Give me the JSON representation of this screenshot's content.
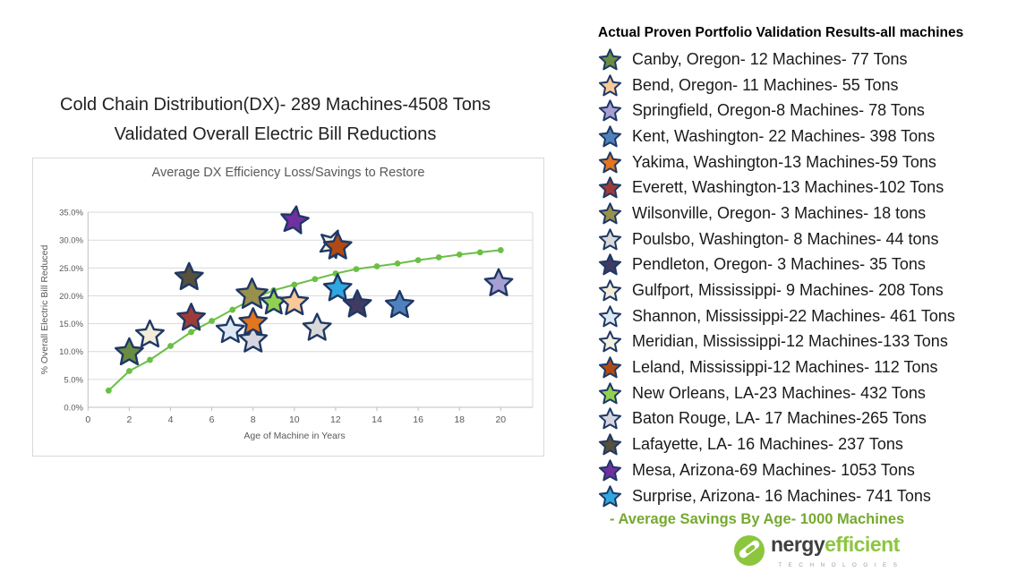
{
  "slide": {
    "title_line1": "Cold Chain Distribution(DX)- 289 Machines-4508 Tons",
    "title_line2": "Validated Overall Electric Bill Reductions"
  },
  "legend": {
    "title": "Actual Proven Portfolio Validation Results-all machines",
    "items": [
      {
        "id": "canby",
        "label": "Canby, Oregon- 12 Machines- 77 Tons",
        "color": "#6a8c42"
      },
      {
        "id": "bend",
        "label": "Bend, Oregon- 11 Machines- 55 Tons",
        "color": "#f9c999"
      },
      {
        "id": "springfield",
        "label": "Springfield, Oregon-8 Machines- 78 Tons",
        "color": "#a79fd3"
      },
      {
        "id": "kent",
        "label": "Kent, Washington- 22 Machines- 398 Tons",
        "color": "#4f81bd"
      },
      {
        "id": "yakima",
        "label": "Yakima, Washington-13 Machines-59 Tons",
        "color": "#e2751d"
      },
      {
        "id": "everett",
        "label": "Everett, Washington-13 Machines-102 Tons",
        "color": "#9e3b38"
      },
      {
        "id": "wilsonville",
        "label": "Wilsonville, Oregon- 3 Machines- 18 tons",
        "color": "#99904c"
      },
      {
        "id": "poulsbo",
        "label": "Poulsbo, Washington- 8 Machines- 44 tons",
        "color": "#d9d9d9"
      },
      {
        "id": "pendleton",
        "label": "Pendleton, Oregon- 3 Machines- 35 Tons",
        "color": "#3f3b63"
      },
      {
        "id": "gulfport",
        "label": "Gulfport, Mississippi- 9 Machines- 208 Tons",
        "color": "#f2ecd9"
      },
      {
        "id": "shannon",
        "label": "Shannon, Mississippi-22 Machines- 461 Tons",
        "color": "#dce9f5"
      },
      {
        "id": "meridian",
        "label": "Meridian, Mississippi-12 Machines-133 Tons",
        "color": "#f1f0e3"
      },
      {
        "id": "leland",
        "label": "Leland, Mississippi-12 Machines- 112 Tons",
        "color": "#b04a12"
      },
      {
        "id": "new_orleans",
        "label": "New Orleans, LA-23 Machines- 432 Tons",
        "color": "#92d050"
      },
      {
        "id": "baton_rouge",
        "label": "Baton Rouge, LA- 17 Machines-265 Tons",
        "color": "#d6d6e0"
      },
      {
        "id": "lafayette",
        "label": "Lafayette, LA- 16 Machines- 237 Tons",
        "color": "#56503c"
      },
      {
        "id": "mesa",
        "label": "Mesa, Arizona-69 Machines- 1053 Tons",
        "color": "#7030a0"
      },
      {
        "id": "surprise",
        "label": "Surprise, Arizona- 16 Machines- 741 Tons",
        "color": "#2fa8e1"
      }
    ],
    "line_note": "- Average Savings By Age- 1000 Machines",
    "line_note_color": "#76a92f"
  },
  "chart_data": {
    "type": "scatter",
    "title": "Average DX Efficiency Loss/Savings to Restore",
    "xlabel": "Age of Machine in Years",
    "ylabel": "% Overall Electric Bill Reduced",
    "xlim": [
      0,
      20
    ],
    "ylim": [
      0,
      35
    ],
    "grid": true,
    "x_ticks": [
      0,
      2,
      4,
      6,
      8,
      10,
      12,
      14,
      16,
      18,
      20
    ],
    "y_tick_labels": [
      "0.0%",
      "5.0%",
      "10.0%",
      "15.0%",
      "20.0%",
      "25.0%",
      "30.0%",
      "35.0%"
    ],
    "y_tick_values": [
      0,
      5,
      10,
      15,
      20,
      25,
      30,
      35
    ],
    "line_series": {
      "name": "Average Savings By Age- 1000 Machines",
      "color": "#6abf45",
      "x": [
        1,
        2,
        3,
        4,
        5,
        6,
        7,
        8,
        9,
        10,
        11,
        12,
        13,
        14,
        15,
        16,
        17,
        18,
        19,
        20
      ],
      "y": [
        3,
        6.5,
        8.5,
        11,
        13.5,
        15.5,
        17.5,
        19.5,
        21,
        22,
        23,
        24,
        24.8,
        25.3,
        25.8,
        26.4,
        26.9,
        27.4,
        27.8,
        28.2
      ]
    },
    "scatter_series": {
      "marker": "star",
      "stroke": "#1f3864",
      "points": [
        {
          "id": "canby",
          "x": 2,
          "y": 9.8
        },
        {
          "id": "bend",
          "x": 10,
          "y": 18.8
        },
        {
          "id": "springfield",
          "x": 19.9,
          "y": 22.2
        },
        {
          "id": "kent",
          "x": 15.1,
          "y": 18.3
        },
        {
          "id": "yakima",
          "x": 8,
          "y": 15.2
        },
        {
          "id": "everett",
          "x": 5,
          "y": 16
        },
        {
          "id": "wilsonville",
          "x": 7.95,
          "y": 20.2,
          "size": 18
        },
        {
          "id": "poulsbo",
          "x": 11.1,
          "y": 14.2
        },
        {
          "id": "pendleton",
          "x": 13.05,
          "y": 18.4
        },
        {
          "id": "gulfport",
          "x": 3,
          "y": 13
        },
        {
          "id": "shannon",
          "x": 6.9,
          "y": 13.8
        },
        {
          "id": "meridian",
          "x": 11.85,
          "y": 29.3,
          "rot": 22
        },
        {
          "id": "leland",
          "x": 12.1,
          "y": 28.8
        },
        {
          "id": "new_orleans",
          "x": 9,
          "y": 18.8,
          "size": 15
        },
        {
          "id": "baton_rouge",
          "x": 8,
          "y": 12.1
        },
        {
          "id": "lafayette",
          "x": 4.9,
          "y": 23.3
        },
        {
          "id": "mesa",
          "x": 10,
          "y": 33.5,
          "rot": 8
        },
        {
          "id": "surprise",
          "x": 12.1,
          "y": 21.3
        }
      ],
      "draw_order": [
        "canby",
        "gulfport",
        "lafayette",
        "everett",
        "shannon",
        "baton_rouge",
        "yakima",
        "wilsonville",
        "new_orleans",
        "bend",
        "mesa",
        "poulsbo",
        "surprise",
        "meridian",
        "leland",
        "pendleton",
        "kent",
        "springfield"
      ]
    }
  },
  "logo": {
    "part1": "nergy",
    "part2": "efficient",
    "sub": "T E C H N O L O G I E S",
    "green": "#8cc63f"
  }
}
